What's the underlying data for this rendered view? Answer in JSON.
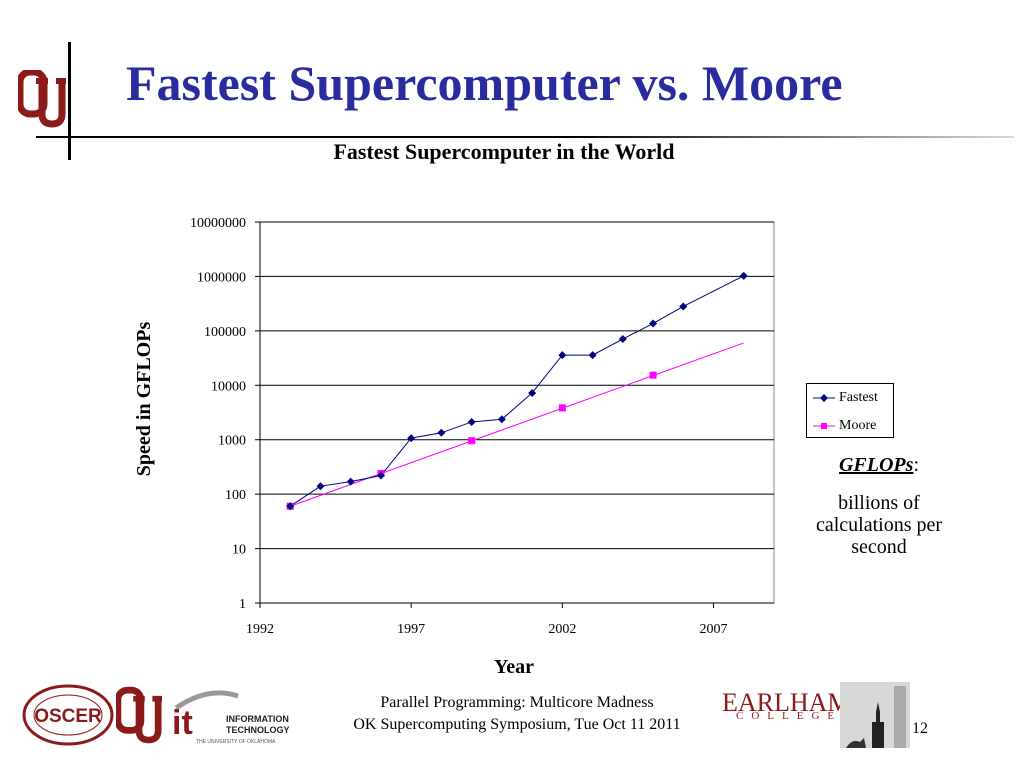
{
  "slide": {
    "title": "Fastest Supercomputer vs. Moore",
    "page_number": "12"
  },
  "chart_data": {
    "type": "line",
    "title": "Fastest Supercomputer in the World",
    "xlabel": "Year",
    "ylabel": "Speed in GFLOPs",
    "yscale": "log",
    "ylim": [
      1,
      10000000
    ],
    "xlim": [
      1992,
      2009
    ],
    "y_ticks": [
      "1",
      "10",
      "100",
      "1000",
      "10000",
      "100000",
      "1000000",
      "10000000"
    ],
    "x_ticks": [
      "1992",
      "1997",
      "2002",
      "2007"
    ],
    "grid": "horizontal",
    "legend_position": "right",
    "series": [
      {
        "name": "Fastest",
        "color": "#000080",
        "marker": "diamond",
        "x": [
          1993,
          1994,
          1995,
          1996,
          1997,
          1998,
          1999,
          2000,
          2001,
          2002,
          2003,
          2004,
          2005,
          2006,
          2008
        ],
        "y": [
          60,
          140,
          170,
          220,
          1070,
          1340,
          2120,
          2380,
          7230,
          35860,
          35860,
          70720,
          136800,
          280600,
          1026000
        ]
      },
      {
        "name": "Moore",
        "color": "#ff00ff",
        "marker": "square",
        "x": [
          1993,
          1996,
          1999,
          2002,
          2005
        ],
        "y": [
          60,
          240,
          960,
          3840,
          15360
        ]
      }
    ],
    "moore_trend": {
      "x": [
        1993,
        2008
      ],
      "y": [
        60,
        60000
      ]
    }
  },
  "note": {
    "term": "GFLOPs",
    "colon": ":",
    "definition": "billions of calculations per second"
  },
  "footer": {
    "line1": "Parallel Programming: Multicore Madness",
    "line2": "OK Supercomputing Symposium, Tue Oct 11 2011",
    "oscer_logo_text": "OSCER",
    "it_logo_line1": "INFORMATION",
    "it_logo_line2": "TECHNOLOGY",
    "it_logo_sub": "THE UNIVERSITY OF OKLAHOMA",
    "earlham_word": "EARLHAM",
    "earlham_college": "COLLEGE"
  },
  "colors": {
    "title": "#2b2ba0",
    "ou_crimson": "#8b1a1a",
    "fastest": "#000080",
    "moore": "#ff00ff"
  }
}
